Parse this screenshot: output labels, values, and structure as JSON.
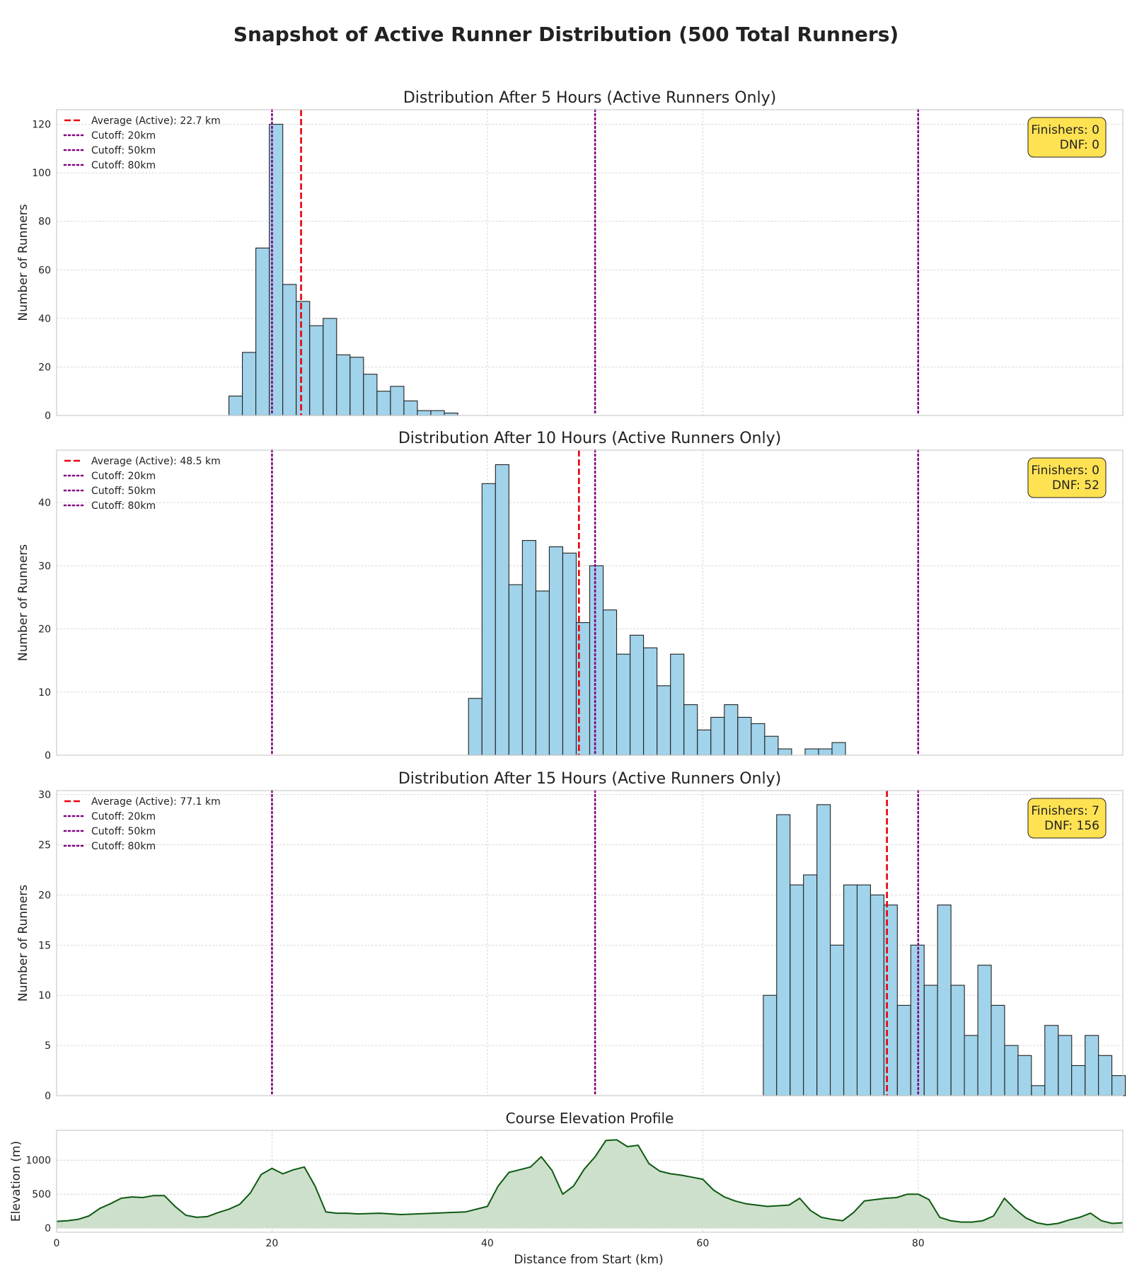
{
  "suptitle": "Snapshot of Active Runner Distribution (500 Total Runners)",
  "xlabel": "Distance from Start (km)",
  "ylabel": "Number of Runners",
  "colors": {
    "bar_fill": "#a1d3ea",
    "bar_edge": "#222222",
    "average_line": "#e8000b",
    "cutoff_line": "#800080",
    "stats_box": "#ffe252",
    "elevation_line": "#0e5a12",
    "elevation_fill": "#cde0cb",
    "grid": "#d3d3d3"
  },
  "chart_data": [
    {
      "type": "bar",
      "title": "Distribution After 5 Hours (Active Runners Only)",
      "xlim": [
        0,
        99
      ],
      "ylim": [
        0,
        126
      ],
      "yticks": [
        0,
        20,
        40,
        60,
        80,
        100,
        120
      ],
      "bin_width": 1.25,
      "bins_start": [
        16.0,
        17.25,
        18.5,
        19.75,
        21.0,
        22.25,
        23.5,
        24.75,
        26.0,
        27.25,
        28.5,
        29.75,
        31.0,
        32.25,
        33.5,
        34.75,
        36.0
      ],
      "values": [
        8,
        26,
        69,
        120,
        54,
        47,
        37,
        40,
        25,
        24,
        17,
        10,
        12,
        6,
        2,
        2,
        1
      ],
      "average": 22.7,
      "legend": [
        "Average (Active): 22.7 km",
        "Cutoff: 20km",
        "Cutoff: 50km",
        "Cutoff: 80km"
      ],
      "cutoffs": [
        20,
        50,
        80
      ],
      "stats": [
        "Finishers: 0",
        "DNF: 0"
      ]
    },
    {
      "type": "bar",
      "title": "Distribution After 10 Hours (Active Runners Only)",
      "xlim": [
        0,
        99
      ],
      "ylim": [
        0,
        48.3
      ],
      "yticks": [
        0,
        10,
        20,
        30,
        40
      ],
      "bin_width": 1.25,
      "bins_start": [
        38.25,
        39.5,
        40.75,
        42.0,
        43.25,
        44.5,
        45.75,
        47.0,
        48.25,
        49.5,
        50.75,
        52.0,
        53.25,
        54.5,
        55.75,
        57.0,
        58.25,
        59.5,
        60.75,
        62.0,
        63.25,
        64.5,
        65.75,
        67.0,
        68.25,
        69.5,
        70.75,
        72.0
      ],
      "values": [
        9,
        43,
        46,
        27,
        34,
        26,
        33,
        32,
        21,
        30,
        23,
        16,
        19,
        17,
        11,
        16,
        8,
        4,
        6,
        8,
        6,
        5,
        3,
        1,
        0,
        1,
        1,
        2
      ],
      "average": 48.5,
      "legend": [
        "Average (Active): 48.5 km",
        "Cutoff: 20km",
        "Cutoff: 50km",
        "Cutoff: 80km"
      ],
      "cutoffs": [
        20,
        50,
        80
      ],
      "stats": [
        "Finishers: 0",
        "DNF: 52"
      ]
    },
    {
      "type": "bar",
      "title": "Distribution After 15 Hours (Active Runners Only)",
      "xlim": [
        0,
        99
      ],
      "ylim": [
        0,
        30.4
      ],
      "yticks": [
        0,
        5,
        10,
        15,
        20,
        25,
        30
      ],
      "bin_width": 1.245,
      "bins_start": [
        65.62,
        66.86,
        68.11,
        69.35,
        70.6,
        71.84,
        73.09,
        74.33,
        75.58,
        76.82,
        78.07,
        79.31,
        80.56,
        81.8,
        83.05,
        84.29,
        85.54,
        86.78,
        88.03,
        89.27,
        90.52,
        91.76,
        93.01,
        94.25,
        95.5,
        96.74,
        97.99
      ],
      "values": [
        10,
        28,
        21,
        22,
        29,
        15,
        21,
        21,
        20,
        19,
        9,
        15,
        11,
        19,
        11,
        6,
        13,
        9,
        5,
        4,
        1,
        7,
        6,
        3,
        6,
        4,
        2
      ],
      "average": 77.1,
      "legend": [
        "Average (Active): 77.1 km",
        "Cutoff: 20km",
        "Cutoff: 50km",
        "Cutoff: 80km"
      ],
      "cutoffs": [
        20,
        50,
        80
      ],
      "stats": [
        "Finishers: 7",
        "DNF: 156"
      ]
    },
    {
      "type": "area",
      "title": "Course Elevation Profile",
      "ylabel": "Elevation (m)",
      "xlim": [
        0,
        99
      ],
      "ylim": [
        -60,
        1440
      ],
      "yticks": [
        0,
        500,
        1000
      ],
      "xticks": [
        0,
        20,
        40,
        60,
        80
      ],
      "x": [
        0,
        1,
        2,
        3,
        4,
        5,
        6,
        7,
        8,
        9,
        10,
        11,
        12,
        13,
        14,
        15,
        16,
        17,
        18,
        19,
        20,
        21,
        22,
        23,
        24,
        25,
        26,
        27,
        28,
        30,
        32,
        35,
        38,
        40,
        41,
        42,
        43,
        44,
        45,
        46,
        47,
        48,
        49,
        50,
        51,
        52,
        53,
        54,
        55,
        56,
        57,
        58,
        59,
        60,
        61,
        62,
        63,
        64,
        66,
        68,
        69,
        70,
        71,
        72,
        73,
        74,
        75,
        76,
        77,
        78,
        79,
        80,
        81,
        82,
        83,
        84,
        85,
        86,
        87,
        88,
        89,
        90,
        91,
        92,
        93,
        94,
        95,
        96,
        97,
        98,
        99
      ],
      "y": [
        100,
        110,
        130,
        180,
        290,
        360,
        440,
        460,
        450,
        480,
        480,
        320,
        190,
        160,
        170,
        230,
        280,
        350,
        520,
        790,
        880,
        800,
        860,
        900,
        620,
        240,
        220,
        220,
        210,
        220,
        200,
        220,
        240,
        320,
        620,
        820,
        860,
        900,
        1050,
        850,
        500,
        620,
        870,
        1050,
        1290,
        1300,
        1200,
        1220,
        950,
        840,
        800,
        780,
        750,
        720,
        560,
        460,
        400,
        360,
        320,
        340,
        440,
        260,
        160,
        130,
        110,
        230,
        400,
        420,
        440,
        450,
        500,
        500,
        420,
        160,
        110,
        90,
        90,
        110,
        180,
        440,
        280,
        150,
        80,
        50,
        70,
        120,
        160,
        220,
        110,
        70,
        80
      ]
    }
  ]
}
